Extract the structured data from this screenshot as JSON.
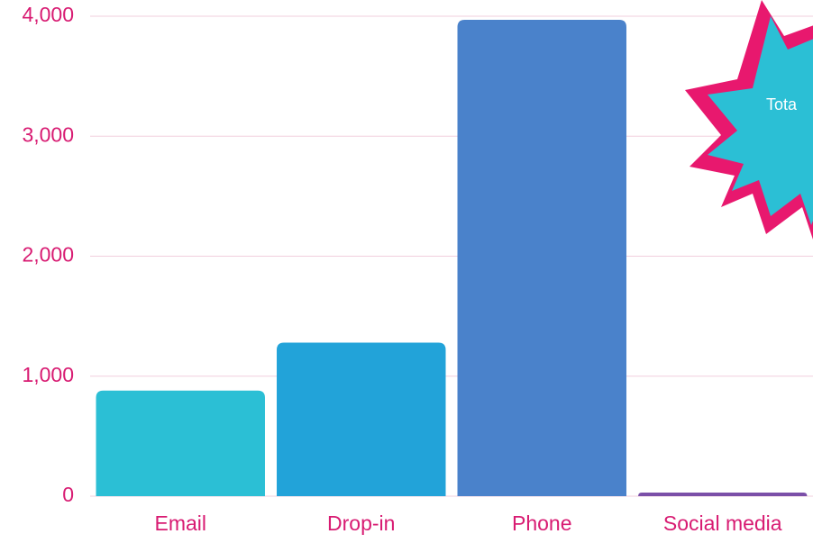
{
  "chart_data": {
    "type": "bar",
    "categories": [
      "Email",
      "Drop-in",
      "Phone",
      "Social media"
    ],
    "values": [
      880,
      1280,
      3970,
      30
    ],
    "colors": [
      "#2bbfd5",
      "#22a3d9",
      "#4a82cb",
      "#7b4fa8"
    ],
    "ylim": [
      0,
      4000
    ],
    "yticks": [
      0,
      {
        "value": 1000,
        "label": "1,000"
      },
      {
        "value": 2000,
        "label": "2,000"
      },
      {
        "value": 3000,
        "label": "3,000"
      },
      {
        "value": 4000,
        "label": "4,000"
      }
    ],
    "grid": true,
    "annotation": "Tota"
  }
}
